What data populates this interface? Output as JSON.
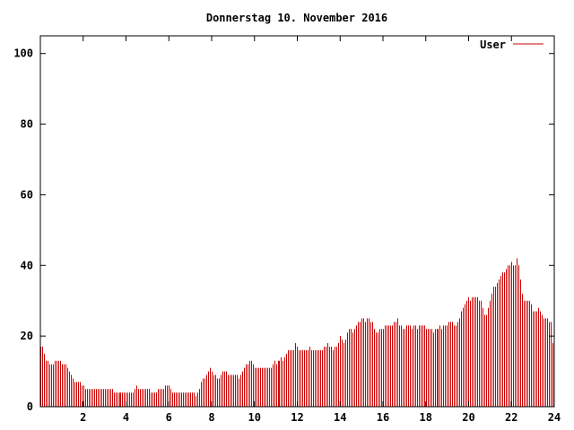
{
  "chart_data": {
    "type": "bar",
    "title": "Donnerstag 10. November 2016",
    "xlabel": "",
    "ylabel": "",
    "xlim": [
      0,
      24
    ],
    "ylim": [
      0,
      105
    ],
    "x_ticks": [
      2,
      4,
      6,
      8,
      10,
      12,
      14,
      16,
      18,
      20,
      22,
      24
    ],
    "x_tick_labels": [
      "2",
      "4",
      "6",
      "8",
      "10",
      "12",
      "14",
      "16",
      "18",
      "20",
      "22",
      "24"
    ],
    "y_ticks": [
      0,
      20,
      40,
      60,
      80,
      100
    ],
    "y_tick_labels": [
      "0",
      "20",
      "40",
      "60",
      "80",
      "100"
    ],
    "grid": false,
    "legend_position": "top-right",
    "series": [
      {
        "name": "User",
        "color": "#cc0000",
        "step_hours": 0.0833,
        "values": [
          17,
          17,
          15,
          13,
          13,
          12,
          12,
          12,
          13,
          13,
          13,
          13,
          12,
          12,
          12,
          11,
          10,
          9,
          8,
          7,
          7,
          7,
          7,
          6,
          6,
          5,
          5,
          5,
          5,
          5,
          5,
          5,
          5,
          5,
          5,
          5,
          5,
          5,
          5,
          5,
          5,
          4,
          4,
          4,
          4,
          4,
          4,
          4,
          4,
          4,
          4,
          4,
          4,
          5,
          6,
          5,
          5,
          5,
          5,
          5,
          5,
          5,
          4,
          4,
          4,
          4,
          5,
          5,
          5,
          5,
          6,
          6,
          6,
          5,
          4,
          4,
          4,
          4,
          4,
          4,
          4,
          4,
          4,
          4,
          4,
          4,
          4,
          3,
          4,
          5,
          7,
          8,
          8,
          9,
          10,
          11,
          10,
          9,
          9,
          8,
          8,
          9,
          10,
          10,
          10,
          9,
          9,
          9,
          9,
          9,
          9,
          8,
          9,
          10,
          11,
          12,
          12,
          13,
          13,
          12,
          11,
          11,
          11,
          11,
          11,
          11,
          11,
          11,
          11,
          11,
          12,
          13,
          12,
          13,
          13,
          14,
          13,
          14,
          15,
          16,
          16,
          16,
          16,
          18,
          17,
          16,
          16,
          16,
          16,
          16,
          16,
          17,
          16,
          16,
          16,
          16,
          16,
          16,
          16,
          17,
          17,
          18,
          17,
          17,
          16,
          17,
          17,
          18,
          20,
          19,
          18,
          19,
          21,
          22,
          22,
          21,
          22,
          23,
          24,
          24,
          25,
          25,
          24,
          25,
          25,
          24,
          24,
          22,
          21,
          21,
          22,
          22,
          22,
          23,
          23,
          23,
          23,
          23,
          24,
          24,
          25,
          23,
          23,
          22,
          22,
          23,
          23,
          23,
          22,
          23,
          23,
          22,
          23,
          23,
          23,
          23,
          22,
          22,
          22,
          22,
          21,
          22,
          22,
          22,
          23,
          22,
          23,
          23,
          23,
          24,
          24,
          24,
          23,
          23,
          24,
          25,
          27,
          28,
          29,
          30,
          31,
          30,
          31,
          31,
          31,
          31,
          30,
          30,
          28,
          26,
          26,
          28,
          30,
          32,
          34,
          34,
          35,
          36,
          37,
          38,
          38,
          39,
          40,
          40,
          41,
          40,
          40,
          42,
          40,
          36,
          32,
          30,
          30,
          30,
          30,
          29,
          27,
          27,
          27,
          28,
          27,
          26,
          25,
          25,
          25,
          24,
          24,
          18
        ]
      }
    ]
  }
}
